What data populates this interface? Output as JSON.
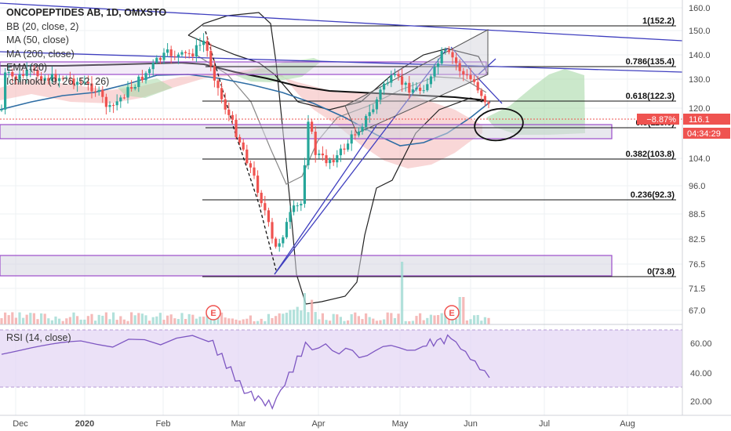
{
  "header": {
    "title": "ONCOPEPTIDES AB, 1D, OMXSTO",
    "indicators": [
      "BB (20, close, 2)",
      "MA (50, close)",
      "MA (200, close)",
      "EMA (20)",
      "Ichimoku (9, 26, 52, 26)"
    ]
  },
  "rsi": {
    "label": "RSI (14, close)",
    "ticks": [
      "60.00",
      "40.00",
      "20.00"
    ]
  },
  "price_axis": {
    "ticks": [
      "160.0",
      "150.0",
      "140.0",
      "130.0",
      "120.0",
      "104.0",
      "96.0",
      "88.5",
      "82.5",
      "76.5",
      "71.5",
      "67.0"
    ],
    "current_price": "116.1",
    "change_pct": "−8.87%",
    "countdown": "04:34:29"
  },
  "time_axis": {
    "labels": [
      "Dec",
      "2020",
      "Feb",
      "Mar",
      "Apr",
      "May",
      "Jun",
      "Jul",
      "Aug"
    ]
  },
  "earnings_marker": "E",
  "fib_levels": [
    {
      "ratio": "1",
      "price": "152.2"
    },
    {
      "ratio": "0.786",
      "price": "135.4"
    },
    {
      "ratio": "0.618",
      "price": "122.3"
    },
    {
      "ratio": "0.5",
      "price": "113.0"
    },
    {
      "ratio": "0.382",
      "price": "103.8"
    },
    {
      "ratio": "0.236",
      "price": "92.3"
    },
    {
      "ratio": "0",
      "price": "73.8"
    }
  ],
  "colors": {
    "up": "#26a69a",
    "down": "#ef5350",
    "bb": "#111111",
    "ma50": "#2e6da4",
    "ma200": "#111111",
    "trend": "#3f3fbf",
    "rsi": "#7e57c2",
    "price_tag": "#ef5350"
  },
  "chart_data": {
    "type": "candlestick",
    "title": "ONCOPEPTIDES AB, 1D, OMXSTO",
    "series_close": [
      {
        "date": "2019-12-02",
        "close": 132
      },
      {
        "date": "2019-12-16",
        "close": 131
      },
      {
        "date": "2020-01-02",
        "close": 136
      },
      {
        "date": "2020-01-15",
        "close": 128
      },
      {
        "date": "2020-02-03",
        "close": 138
      },
      {
        "date": "2020-02-14",
        "close": 139
      },
      {
        "date": "2020-02-21",
        "close": 148
      },
      {
        "date": "2020-02-27",
        "close": 122
      },
      {
        "date": "2020-03-06",
        "close": 108
      },
      {
        "date": "2020-03-12",
        "close": 88
      },
      {
        "date": "2020-03-17",
        "close": 78
      },
      {
        "date": "2020-03-23",
        "close": 82
      },
      {
        "date": "2020-03-30",
        "close": 118
      },
      {
        "date": "2020-04-08",
        "close": 102
      },
      {
        "date": "2020-04-20",
        "close": 110
      },
      {
        "date": "2020-05-04",
        "close": 126
      },
      {
        "date": "2020-05-15",
        "close": 127
      },
      {
        "date": "2020-05-26",
        "close": 141
      },
      {
        "date": "2020-06-03",
        "close": 132
      },
      {
        "date": "2020-06-10",
        "close": 116.1
      }
    ],
    "rsi_close": [
      {
        "date": "2019-12-02",
        "value": 55
      },
      {
        "date": "2020-01-02",
        "value": 60
      },
      {
        "date": "2020-02-21",
        "value": 65
      },
      {
        "date": "2020-03-06",
        "value": 28
      },
      {
        "date": "2020-03-17",
        "value": 17
      },
      {
        "date": "2020-03-30",
        "value": 60
      },
      {
        "date": "2020-04-20",
        "value": 54
      },
      {
        "date": "2020-05-15",
        "value": 60
      },
      {
        "date": "2020-05-26",
        "value": 65
      },
      {
        "date": "2020-06-10",
        "value": 37
      }
    ],
    "y_range": [
      65,
      162
    ],
    "rsi_range": [
      15,
      70
    ]
  }
}
